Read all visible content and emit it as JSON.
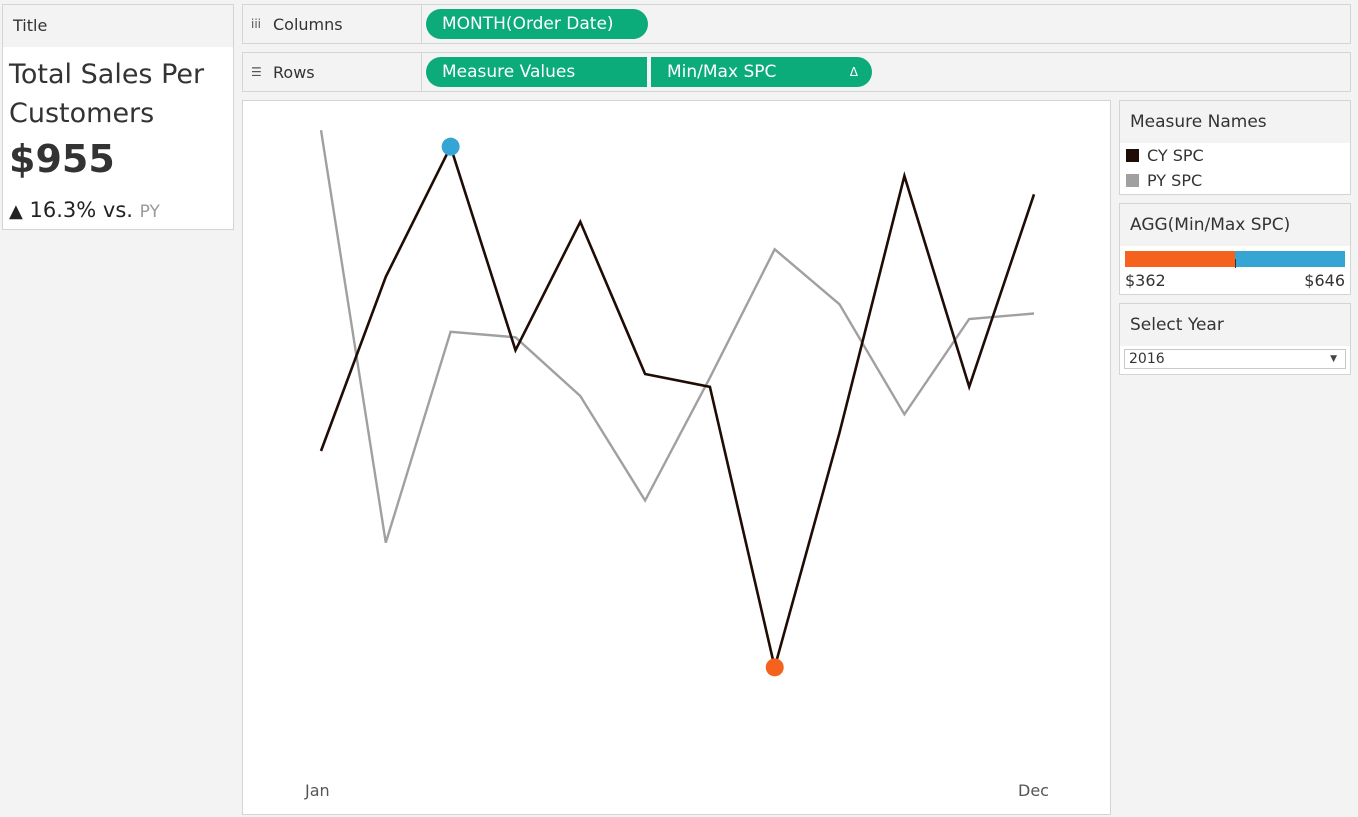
{
  "title_card": {
    "header": "Title",
    "title": "Total Sales Per Customers",
    "value": "$955",
    "change_icon": "▲",
    "change_text": "16.3% vs.",
    "compare_label": "PY"
  },
  "shelves": {
    "columns": {
      "label": "Columns",
      "icon": "iii",
      "pills": [
        "MONTH(Order Date)"
      ]
    },
    "rows": {
      "label": "Rows",
      "icon": "☰",
      "pills": [
        "Measure Values",
        "Min/Max SPC"
      ],
      "delta_icon": "Δ"
    }
  },
  "legend": {
    "title": "Measure Names",
    "items": [
      {
        "label": "CY SPC",
        "color": "#1e0c05"
      },
      {
        "label": "PY SPC",
        "color": "#a0a0a0"
      }
    ]
  },
  "color_legend": {
    "title": "AGG(Min/Max SPC)",
    "min_label": "$362",
    "max_label": "$646",
    "low_color": "#f5621e",
    "high_color": "#35a6d4"
  },
  "year_filter": {
    "title": "Select Year",
    "selected": "2016"
  },
  "chart_data": {
    "type": "line",
    "x": [
      "Jan",
      "Feb",
      "Mar",
      "Apr",
      "May",
      "Jun",
      "Jul",
      "Aug",
      "Sep",
      "Oct",
      "Nov",
      "Dec"
    ],
    "x_tick_labels": [
      "Jan",
      "Dec"
    ],
    "series": [
      {
        "name": "CY SPC",
        "color": "#1e0c05",
        "values": [
          480,
          575,
          646,
          535,
          605,
          522,
          515,
          362,
          490,
          630,
          515,
          620
        ]
      },
      {
        "name": "PY SPC",
        "color": "#a0a0a0",
        "values": [
          655,
          430,
          545,
          542,
          510,
          453,
          520,
          590,
          560,
          500,
          552,
          555
        ]
      }
    ],
    "highlights": [
      {
        "series": "CY SPC",
        "x": "Mar",
        "value": 646,
        "label": "max",
        "color": "#35a6d4"
      },
      {
        "series": "CY SPC",
        "x": "Aug",
        "value": 362,
        "label": "min",
        "color": "#f5621e"
      }
    ],
    "ylim": [
      300,
      660
    ],
    "grid": false,
    "y_axis_visible": false
  }
}
